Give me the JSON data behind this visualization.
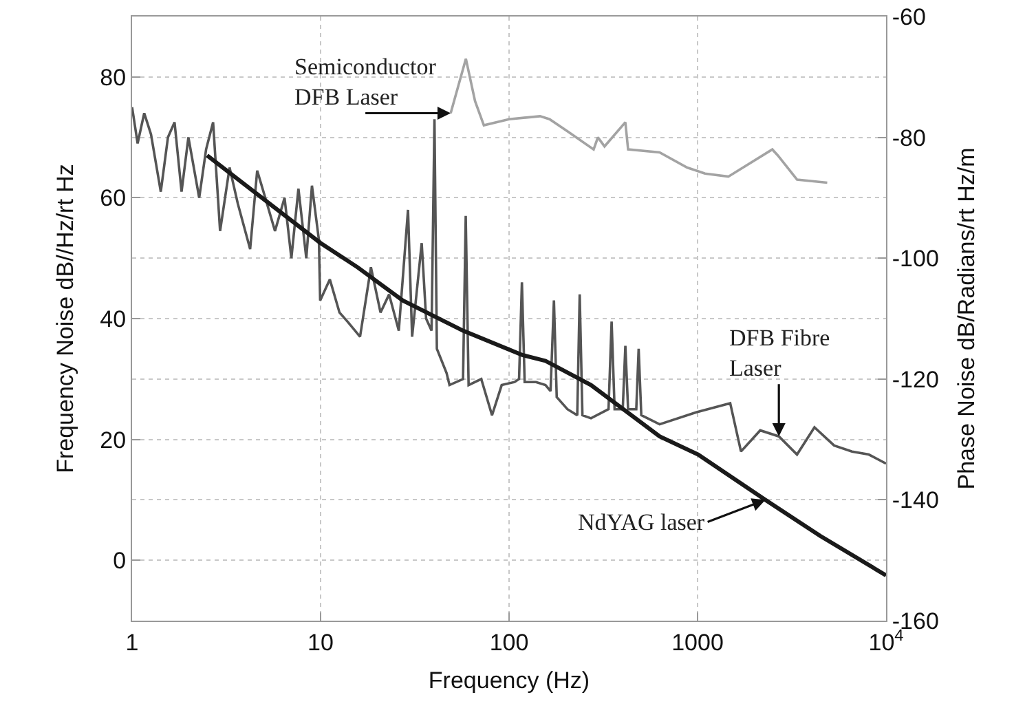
{
  "chart_data": {
    "type": "line",
    "xlabel": "Frequency (Hz)",
    "ylabel": "Frequency Noise dB//Hz/rt Hz",
    "y2label": "Phase Noise dB/Radians/rt Hz/m",
    "log": "x",
    "grid": true,
    "marker": "none",
    "line_style": "solid",
    "xlim": [
      1,
      10000
    ],
    "xticks": [
      1,
      10,
      100,
      1000,
      {
        "value": 10000,
        "label": "10$^{4}$"
      }
    ],
    "ylim": [
      -10,
      90
    ],
    "yticks": [
      0,
      20,
      40,
      60,
      80
    ],
    "y2lim": [
      -160,
      -60
    ],
    "y2ticks": [
      -160,
      -140,
      -120,
      -100,
      -80,
      -60
    ],
    "series": [
      {
        "color": "#a3a3a3",
        "x": [
          49,
          59,
          66,
          73.5,
          100,
          146,
          164,
          204,
          281,
          296,
          321,
          414,
          428,
          629,
          881,
          1096,
          1456,
          2493,
          2667,
          3373,
          4876
        ],
        "values": [
          74,
          83,
          76,
          72,
          73,
          73.5,
          73,
          71,
          68,
          70,
          68.5,
          72.5,
          68,
          67.5,
          65,
          64,
          63.5,
          68,
          67,
          63,
          62.5
        ]
      },
      {
        "color": "#555555",
        "x": [
          1,
          1.07,
          1.16,
          1.26,
          1.42,
          1.55,
          1.68,
          1.83,
          1.99,
          2.27,
          2.47,
          2.69,
          2.93,
          3.29,
          3.64,
          4.23,
          4.61,
          5.09,
          5.73,
          6.44,
          7,
          7.63,
          8.4,
          9,
          9.8,
          9.95,
          11.2,
          12.6,
          13.9,
          16.2,
          18.5,
          20.8,
          23.1,
          26,
          29.1,
          30.6,
          34.4,
          36.3,
          38.8,
          40.2,
          41.4,
          46.6,
          48.3,
          57,
          58.9,
          61,
          71.2,
          81.2,
          91.4,
          107,
          113,
          117,
          121,
          139,
          156,
          166,
          173,
          179,
          204,
          230,
          237,
          245,
          272,
          337,
          350,
          363,
          401,
          414,
          428,
          473,
          487,
          503,
          629,
          988,
          1490,
          1700,
          2150,
          2700,
          3370,
          4170,
          5300,
          6600,
          8100,
          10000
        ],
        "values": [
          75,
          69,
          74,
          70.5,
          61,
          70,
          72.5,
          61,
          70,
          60,
          68,
          72.5,
          54.5,
          65,
          59,
          51.5,
          64.5,
          60,
          54.5,
          60,
          50,
          61.5,
          50,
          62,
          53,
          43,
          46.5,
          41,
          39.5,
          37,
          48.5,
          41,
          44,
          38,
          58,
          37,
          52.5,
          40,
          38,
          73,
          35,
          31,
          29,
          30,
          57,
          29,
          30,
          24,
          29,
          29.5,
          30,
          46,
          29.5,
          29.5,
          29,
          28,
          43,
          27,
          25,
          24,
          44,
          24,
          23.5,
          25,
          39.5,
          25,
          25,
          35.5,
          25,
          25,
          35,
          24,
          22.5,
          24.5,
          26,
          18,
          21.5,
          20.5,
          17.5,
          22,
          19,
          18,
          17.5,
          16
        ]
      },
      {
        "color": "#1a1a1a",
        "x": [
          2.5,
          10,
          15.7,
          27.3,
          57,
          117,
          156,
          272,
          629,
          1007,
          2291,
          4486,
          10000
        ],
        "values": [
          67,
          52.5,
          48.5,
          43,
          38,
          34,
          33,
          29,
          20.5,
          17.5,
          10,
          4,
          -2.5
        ]
      }
    ],
    "annotations": [
      {
        "text": "Semiconductor\nDFB Laser",
        "x": 49,
        "y": 74
      },
      {
        "text": "DFB Fibre\nLaser",
        "x": 2700,
        "y": 20.5
      },
      {
        "text": "NdYAG laser",
        "x": 2291,
        "y": 10
      }
    ]
  }
}
